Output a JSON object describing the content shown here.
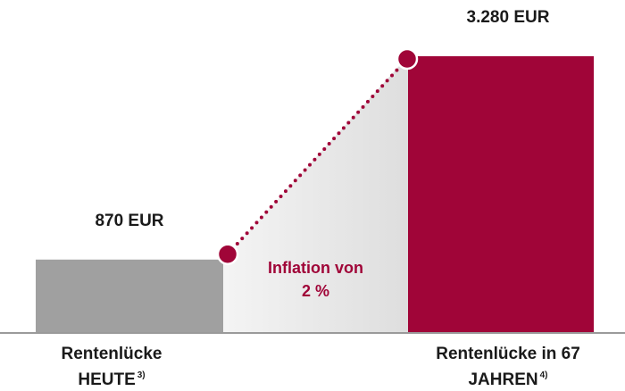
{
  "chart_data": {
    "type": "bar",
    "categories": [
      "Rentenlücke HEUTE",
      "Rentenlücke in 67 JAHREN"
    ],
    "footnotes": [
      "3)",
      "4)"
    ],
    "values": [
      870,
      3280
    ],
    "value_labels": [
      "870 EUR",
      "3.280 EUR"
    ],
    "colors": [
      "#a0a0a0",
      "#a00538"
    ],
    "annotation": "Inflation von 2 %"
  }
}
